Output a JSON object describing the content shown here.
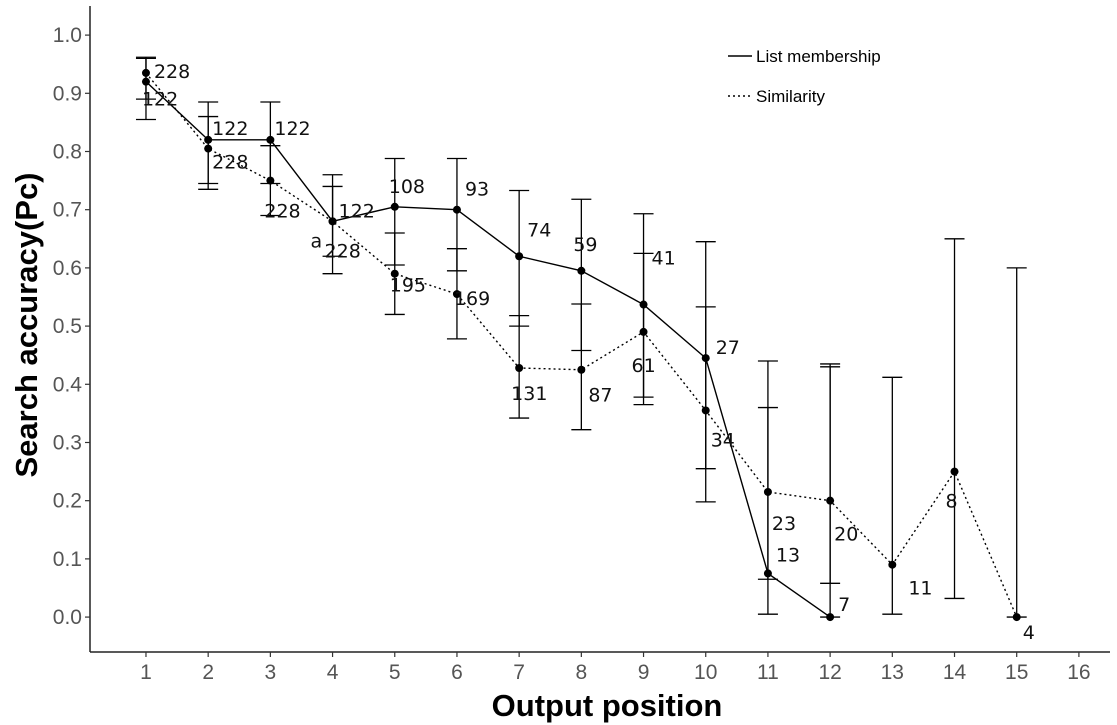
{
  "chart_data": {
    "type": "line",
    "title": "",
    "xlabel": "Output position",
    "ylabel": "Search accuracy(Pc)",
    "xlim": [
      0.1,
      16.5
    ],
    "ylim": [
      -0.06,
      1.05
    ],
    "x_ticks": [
      1,
      2,
      3,
      4,
      5,
      6,
      7,
      8,
      9,
      10,
      11,
      12,
      13,
      14,
      15,
      16
    ],
    "y_ticks": [
      0.0,
      0.1,
      0.2,
      0.3,
      0.4,
      0.5,
      0.6,
      0.7,
      0.8,
      0.9,
      1.0
    ],
    "y_tick_labels": [
      "0.0",
      "0.1",
      "0.2",
      "0.3",
      "0.4",
      "0.5",
      "0.6",
      "0.7",
      "0.8",
      "0.9",
      "1.0"
    ],
    "grid": false,
    "legend_position": "top-right",
    "series": [
      {
        "name": "List membership",
        "line_style": "solid",
        "x": [
          1,
          2,
          3,
          4,
          5,
          6,
          7,
          8,
          9,
          10,
          11,
          12
        ],
        "y": [
          0.92,
          0.82,
          0.82,
          0.68,
          0.705,
          0.7,
          0.62,
          0.595,
          0.537,
          0.445,
          0.075,
          0.0
        ],
        "err_low": [
          0.855,
          0.745,
          0.745,
          0.59,
          0.605,
          0.595,
          0.5,
          0.458,
          0.378,
          0.255,
          0.005,
          0.0
        ],
        "err_high": [
          0.96,
          0.885,
          0.885,
          0.76,
          0.788,
          0.788,
          0.733,
          0.718,
          0.693,
          0.645,
          0.36,
          0.435
        ],
        "n_labels": [
          "122",
          "122",
          "122",
          "122",
          "108",
          "93",
          "74",
          "59",
          "41",
          "27",
          "13",
          "7"
        ]
      },
      {
        "name": "Similarity",
        "line_style": "dotted",
        "x": [
          1,
          2,
          3,
          4,
          5,
          6,
          7,
          8,
          9,
          10,
          11,
          12,
          13,
          14,
          15
        ],
        "y": [
          0.935,
          0.805,
          0.75,
          0.68,
          0.59,
          0.555,
          0.428,
          0.425,
          0.49,
          0.355,
          0.215,
          0.2,
          0.09,
          0.25,
          0.0
        ],
        "err_low": [
          0.89,
          0.735,
          0.69,
          0.62,
          0.52,
          0.478,
          0.342,
          0.322,
          0.365,
          0.198,
          0.065,
          0.058,
          0.005,
          0.032,
          0.0
        ],
        "err_high": [
          0.962,
          0.86,
          0.81,
          0.74,
          0.66,
          0.633,
          0.518,
          0.538,
          0.625,
          0.533,
          0.44,
          0.43,
          0.412,
          0.65,
          0.6
        ],
        "n_labels": [
          "228",
          "228",
          "228",
          "228",
          "195",
          "169",
          "131",
          "87",
          "61",
          "34",
          "23",
          "20",
          "11",
          "8",
          "4"
        ]
      }
    ],
    "annotations": [
      {
        "text": "a",
        "x": 4,
        "y": 0.68
      }
    ]
  }
}
